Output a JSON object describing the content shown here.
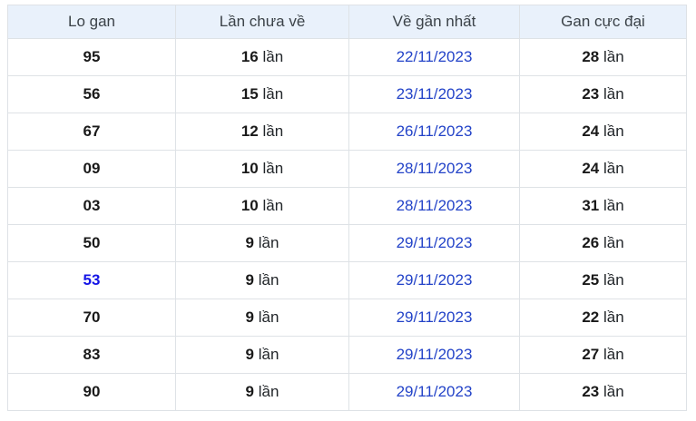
{
  "table": {
    "headers": [
      {
        "label": "Lo gan"
      },
      {
        "label": "Lần chưa về"
      },
      {
        "label": "Về gần nhất"
      },
      {
        "label": "Gan cực đại"
      }
    ],
    "unit_label": "lần",
    "rows": [
      {
        "lo": "95",
        "lo_is_link": false,
        "times": "16",
        "date": "22/11/2023",
        "max": "28"
      },
      {
        "lo": "56",
        "lo_is_link": false,
        "times": "15",
        "date": "23/11/2023",
        "max": "23"
      },
      {
        "lo": "67",
        "lo_is_link": false,
        "times": "12",
        "date": "26/11/2023",
        "max": "24"
      },
      {
        "lo": "09",
        "lo_is_link": false,
        "times": "10",
        "date": "28/11/2023",
        "max": "24"
      },
      {
        "lo": "03",
        "lo_is_link": false,
        "times": "10",
        "date": "28/11/2023",
        "max": "31"
      },
      {
        "lo": "50",
        "lo_is_link": false,
        "times": "9",
        "date": "29/11/2023",
        "max": "26"
      },
      {
        "lo": "53",
        "lo_is_link": true,
        "times": "9",
        "date": "29/11/2023",
        "max": "25"
      },
      {
        "lo": "70",
        "lo_is_link": false,
        "times": "9",
        "date": "29/11/2023",
        "max": "22"
      },
      {
        "lo": "83",
        "lo_is_link": false,
        "times": "9",
        "date": "29/11/2023",
        "max": "27"
      },
      {
        "lo": "90",
        "lo_is_link": false,
        "times": "9",
        "date": "29/11/2023",
        "max": "23"
      }
    ]
  },
  "colors": {
    "header_bg": "#e9f1fb",
    "border": "#dee2e6",
    "date_link": "#2343c8",
    "lo_link": "#1414e6",
    "text": "#212529"
  }
}
